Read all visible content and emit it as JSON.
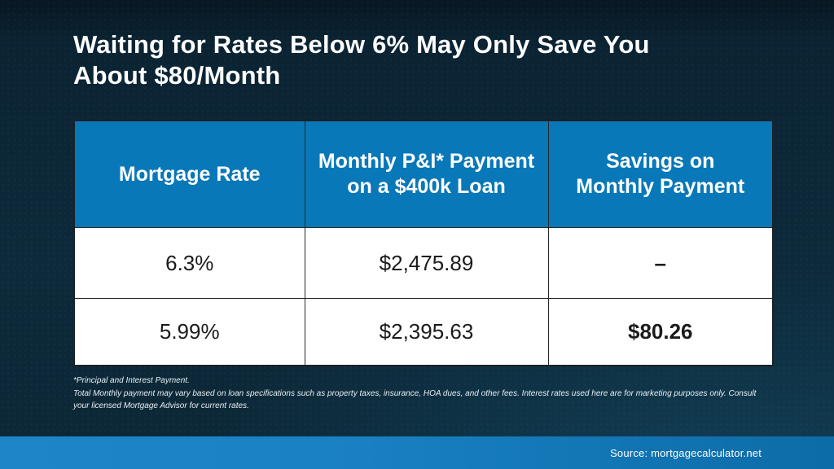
{
  "slide": {
    "title": {
      "line1": "Waiting for Rates Below 6% May Only Save You",
      "line2": "About $80/Month"
    },
    "footnote": {
      "line1": "*Principal and Interest Payment.",
      "line2": "Total Monthly payment may vary based on loan specifications such as property taxes, insurance, HOA dues, and other fees. Interest rates used here are for marketing purposes only. Consult your licensed Mortgage Advisor for current rates."
    },
    "footer": {
      "source": "Source: mortgagecalculator.net"
    }
  },
  "chart_data": {
    "type": "table",
    "title": "Waiting for Rates Below 6% May Only Save You About $80/Month",
    "columns": [
      "Mortgage Rate",
      "Monthly P&I* Payment on a $400k Loan",
      "Savings on Monthly Payment"
    ],
    "rows": [
      [
        "6.3%",
        "$2,475.89",
        "–"
      ],
      [
        "5.99%",
        "$2,395.63",
        "$80.26"
      ]
    ],
    "numeric": {
      "loan_amount_usd": 400000,
      "mortgage_rates_pct": [
        6.3,
        5.99
      ],
      "monthly_pi_payment_usd": [
        2475.89,
        2395.63
      ],
      "savings_on_monthly_payment_usd": [
        null,
        80.26
      ]
    }
  },
  "colors": {
    "background_dark": "#0d2a3a",
    "background_top": "#081722",
    "header_blue": "#0878b8",
    "footer_bar_left": "#1e86c8",
    "footer_bar_right": "#0c6ca7",
    "cell_background": "#ffffff",
    "cell_text": "#1b1b1b",
    "title_text": "#ffffff"
  }
}
